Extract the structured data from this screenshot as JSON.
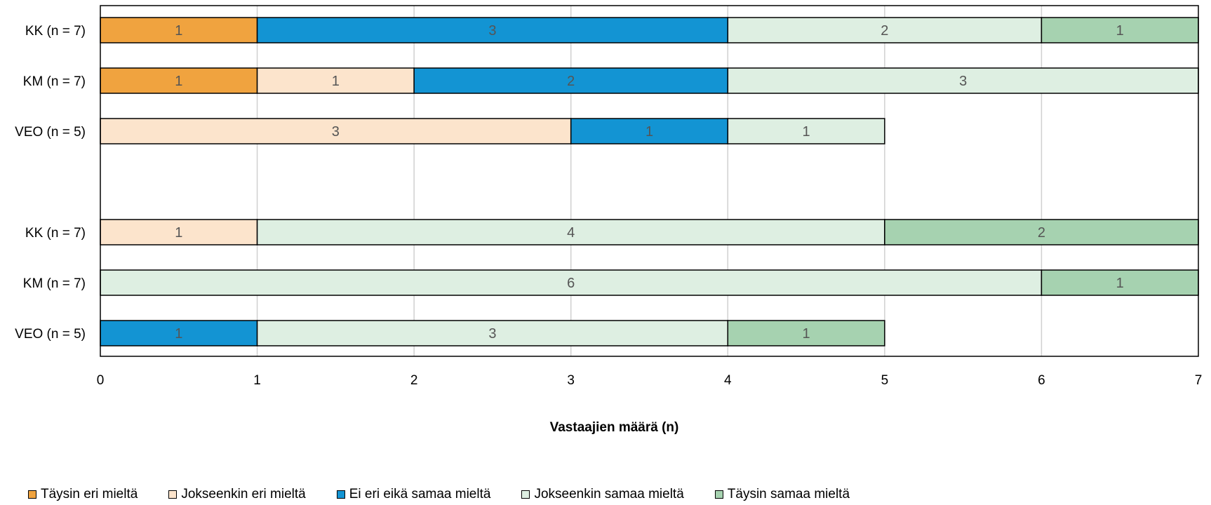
{
  "chart_data": {
    "type": "bar",
    "orientation": "horizontal",
    "stacked": true,
    "xlabel": "Vastaajien määrä (n)",
    "xlim": [
      0,
      7
    ],
    "xticks": [
      "0",
      "1",
      "2",
      "3",
      "4",
      "5",
      "6",
      "7"
    ],
    "grid": true,
    "legend_position": "bottom",
    "groups": [
      {
        "rows": [
          {
            "label": "KK (n = 7)",
            "values": [
              1,
              0,
              3,
              2,
              1
            ]
          },
          {
            "label": "KM (n = 7)",
            "values": [
              1,
              1,
              2,
              3,
              0
            ]
          },
          {
            "label": "VEO (n = 5)",
            "values": [
              0,
              3,
              1,
              1,
              0
            ]
          }
        ]
      },
      {
        "rows": [
          {
            "label": "KK (n = 7)",
            "values": [
              0,
              1,
              0,
              4,
              2
            ]
          },
          {
            "label": "KM (n = 7)",
            "values": [
              0,
              0,
              0,
              6,
              1
            ]
          },
          {
            "label": "VEO (n = 5)",
            "values": [
              0,
              0,
              1,
              3,
              1
            ]
          }
        ]
      }
    ],
    "series": [
      {
        "name": "Täysin eri mieltä",
        "color": "#F0A33F"
      },
      {
        "name": "Jokseenkin eri mieltä",
        "color": "#FCE4CC"
      },
      {
        "name": "Ei eri eikä samaa mieltä",
        "color": "#1394D3"
      },
      {
        "name": "Jokseenkin samaa mieltä",
        "color": "#DEEFE2"
      },
      {
        "name": "Täysin samaa mieltä",
        "color": "#A6D2B0"
      }
    ]
  }
}
